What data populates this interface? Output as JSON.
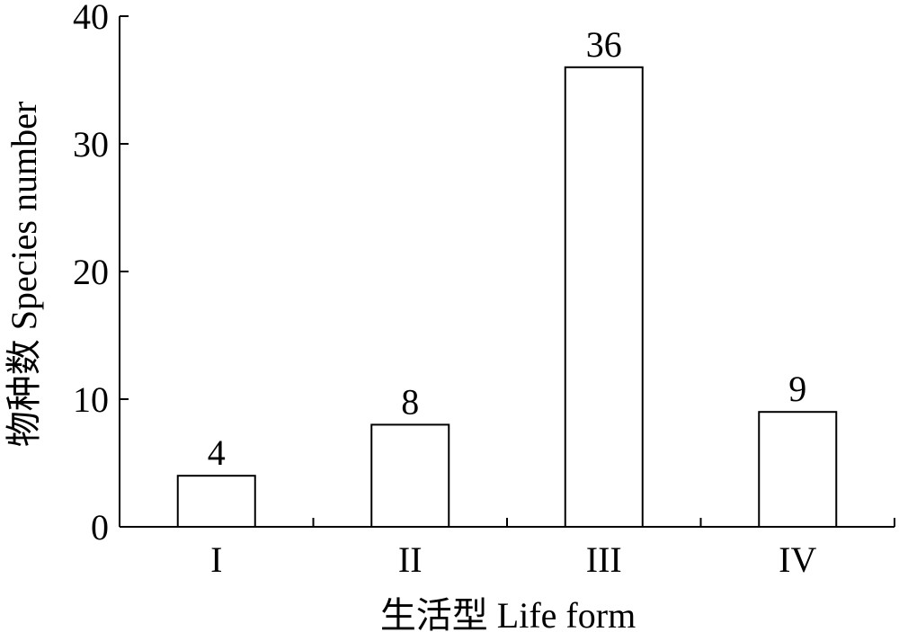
{
  "chart_data": {
    "type": "bar",
    "title": "",
    "xlabel": "生活型 Life form",
    "ylabel": "物种数 Species number",
    "categories": [
      "I",
      "II",
      "III",
      "IV"
    ],
    "values": [
      4,
      8,
      36,
      9
    ],
    "data_labels": [
      "4",
      "8",
      "36",
      "9"
    ],
    "ylim": [
      0,
      40
    ],
    "yticks": [
      0,
      10,
      20,
      30,
      40
    ],
    "grid": false,
    "legend": "none",
    "bar_fill": "#ffffff",
    "bar_stroke": "#000000"
  }
}
